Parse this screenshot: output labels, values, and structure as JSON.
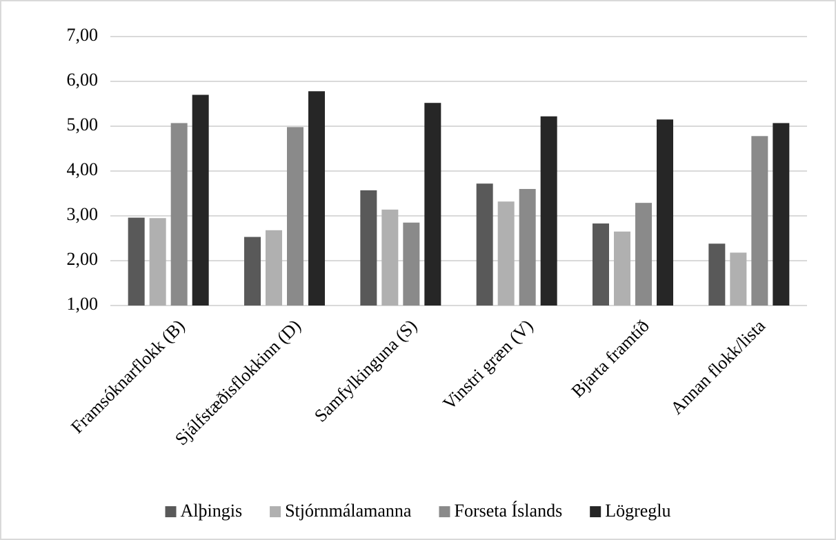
{
  "chart_data": {
    "type": "bar",
    "categories": [
      "Framsóknarflokk (B)",
      "Sjálfstæðisflokkinn (D)",
      "Samfylkinguna (S)",
      "Vinstri græn (V)",
      "Bjarta framtíð",
      "Annan flokk/lista"
    ],
    "series": [
      {
        "name": "Alþingis",
        "color": "#595959",
        "values": [
          2.96,
          2.53,
          3.57,
          3.72,
          2.83,
          2.38
        ]
      },
      {
        "name": "Stjórnmálamanna",
        "color": "#b0b0b0",
        "values": [
          2.95,
          2.68,
          3.14,
          3.32,
          2.65,
          2.18
        ]
      },
      {
        "name": "Forseta Íslands",
        "color": "#8a8a8a",
        "values": [
          5.07,
          4.98,
          2.85,
          3.6,
          3.29,
          4.78
        ]
      },
      {
        "name": "Lögreglu",
        "color": "#262626",
        "values": [
          5.7,
          5.78,
          5.52,
          5.22,
          5.15,
          5.07
        ]
      }
    ],
    "ylim": [
      1,
      7
    ],
    "yticks": [
      {
        "value": 1,
        "label": "1,00"
      },
      {
        "value": 2,
        "label": "2,00"
      },
      {
        "value": 3,
        "label": "3,00"
      },
      {
        "value": 4,
        "label": "4,00"
      },
      {
        "value": 5,
        "label": "5,00"
      },
      {
        "value": 6,
        "label": "6,00"
      },
      {
        "value": 7,
        "label": "7,00"
      }
    ],
    "grid": true,
    "legend": "bottom"
  }
}
